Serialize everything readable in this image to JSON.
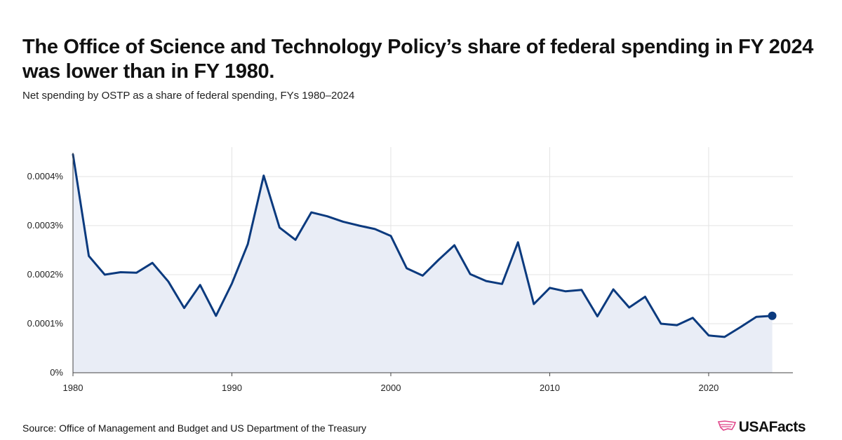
{
  "colors": {
    "line": "#0b3a7e",
    "area": "#e9edf6",
    "grid": "#e3e3e3",
    "axis": "#444444",
    "logo_accent": "#e0468a"
  },
  "logo": {
    "text": "USAFacts",
    "icon": "usa-map-icon"
  },
  "source": "Source: Office of Management and Budget and US Department of the Treasury",
  "chart_data": {
    "type": "area",
    "title": "The Office of Science and Technology Policy’s share of federal spending in FY 2024 was lower than in FY 1980.",
    "subtitle": "Net spending by OSTP as a share of federal spending, FYs 1980–2024",
    "x_ticks": [
      1980,
      1990,
      2000,
      2010,
      2020
    ],
    "x_tick_labels": [
      "1980",
      "1990",
      "2000",
      "2010",
      "2020"
    ],
    "y_ticks": [
      0,
      0.0001,
      0.0002,
      0.0003,
      0.0004
    ],
    "y_tick_labels": [
      "0%",
      "0.0001%",
      "0.0002%",
      "0.0003%",
      "0.0004%"
    ],
    "xlim": [
      1980,
      2025.3
    ],
    "ylim": [
      0,
      0.00046
    ],
    "series": [
      {
        "name": "OSTP share of federal spending",
        "x": [
          1980,
          1981,
          1982,
          1983,
          1984,
          1985,
          1986,
          1987,
          1988,
          1989,
          1990,
          1991,
          1992,
          1993,
          1994,
          1995,
          1996,
          1997,
          1998,
          1999,
          2000,
          2001,
          2002,
          2003,
          2004,
          2005,
          2006,
          2007,
          2008,
          2009,
          2010,
          2011,
          2012,
          2013,
          2014,
          2015,
          2016,
          2017,
          2018,
          2019,
          2020,
          2021,
          2022,
          2023,
          2024
        ],
        "values": [
          0.000445,
          0.000238,
          0.0002,
          0.000205,
          0.000204,
          0.000224,
          0.000186,
          0.000132,
          0.000179,
          0.000116,
          0.000182,
          0.000262,
          0.000402,
          0.000296,
          0.000271,
          0.000327,
          0.000319,
          0.000308,
          0.0003,
          0.000293,
          0.000279,
          0.000213,
          0.000198,
          0.00023,
          0.00026,
          0.000201,
          0.000187,
          0.000181,
          0.000266,
          0.00014,
          0.000173,
          0.000166,
          0.000169,
          0.000115,
          0.00017,
          0.000133,
          0.000155,
          0.0001,
          9.7e-05,
          0.000112,
          7.6e-05,
          7.3e-05,
          9.3e-05,
          0.000114,
          0.000116
        ]
      }
    ]
  }
}
